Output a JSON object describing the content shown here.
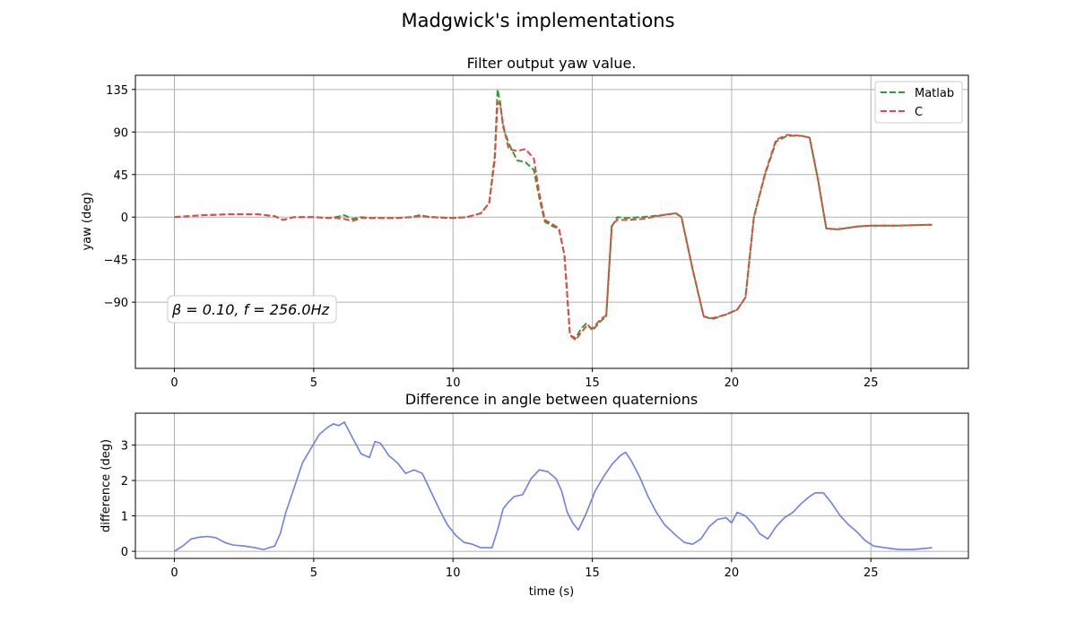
{
  "figure": {
    "suptitle": "Madgwick's implementations"
  },
  "chart_data": [
    {
      "type": "line",
      "title": "Filter output yaw value.",
      "xlabel": "",
      "ylabel": "yaw (deg)",
      "xlim": [
        -1.4,
        28.5
      ],
      "ylim": [
        -160,
        150
      ],
      "xticks": [
        0,
        5,
        10,
        15,
        20,
        25
      ],
      "yticks": [
        -90,
        -45,
        0,
        45,
        90,
        135
      ],
      "ytick_labels": [
        "−90",
        "−45",
        "0",
        "45",
        "90",
        "135"
      ],
      "grid": true,
      "legend": "top-right",
      "annotation": "β = 0.10,  f = 256.0Hz",
      "series": [
        {
          "name": "Matlab",
          "color": "#2ca02c",
          "style": "dashed",
          "x": [
            0,
            0.5,
            1,
            2,
            3,
            3.3,
            3.6,
            3.9,
            4.3,
            5,
            5.5,
            5.8,
            6.1,
            6.4,
            6.7,
            7,
            8,
            8.5,
            8.8,
            9.2,
            10,
            10.5,
            11,
            11.3,
            11.5,
            11.6,
            11.7,
            11.8,
            12,
            12.3,
            12.6,
            12.9,
            13.1,
            13.3,
            13.6,
            13.8,
            14,
            14.2,
            14.4,
            14.6,
            14.8,
            15,
            15.3,
            15.5,
            15.7,
            15.9,
            16.2,
            16.8,
            17.5,
            18,
            18.2,
            18.6,
            19,
            19.3,
            19.8,
            20.2,
            20.5,
            20.8,
            21.2,
            21.6,
            22,
            22.5,
            22.8,
            23.1,
            23.4,
            23.8,
            24.5,
            25,
            26,
            27.2
          ],
          "y": [
            0,
            1,
            2,
            3,
            3,
            2,
            1,
            -3,
            0,
            0,
            -1,
            0,
            2,
            -2,
            0,
            -1,
            -1,
            0,
            2,
            0,
            -1,
            0,
            4,
            15,
            65,
            135,
            120,
            95,
            78,
            60,
            58,
            50,
            20,
            -5,
            -10,
            -12,
            -40,
            -125,
            -128,
            -118,
            -112,
            -120,
            -110,
            -105,
            -10,
            0,
            -1,
            0,
            2,
            4,
            0,
            -55,
            -105,
            -108,
            -103,
            -98,
            -85,
            0,
            45,
            80,
            86,
            86,
            84,
            40,
            -12,
            -13,
            -10,
            -9,
            -9,
            -8
          ]
        },
        {
          "name": "C",
          "color": "#ee4444",
          "style": "dashed",
          "x": [
            0,
            0.5,
            1,
            2,
            3,
            3.3,
            3.6,
            3.9,
            4.3,
            5,
            5.5,
            5.8,
            6.1,
            6.4,
            6.7,
            7,
            8,
            8.5,
            8.8,
            9.2,
            10,
            10.5,
            11,
            11.3,
            11.5,
            11.6,
            11.7,
            11.8,
            12,
            12.3,
            12.6,
            12.9,
            13.1,
            13.3,
            13.6,
            13.8,
            14,
            14.2,
            14.4,
            14.6,
            14.8,
            15,
            15.3,
            15.5,
            15.7,
            15.9,
            16.2,
            16.8,
            17.5,
            18,
            18.2,
            18.6,
            19,
            19.3,
            19.8,
            20.2,
            20.5,
            20.8,
            21.2,
            21.6,
            22,
            22.5,
            22.8,
            23.1,
            23.4,
            23.8,
            24.5,
            25,
            26,
            27.2
          ],
          "y": [
            0,
            1,
            2,
            3,
            3,
            2,
            1,
            -3,
            0,
            0,
            -1,
            -1,
            -2,
            -4,
            -1,
            -1,
            -1,
            0,
            1,
            0,
            -1,
            0,
            4,
            15,
            60,
            122,
            118,
            98,
            72,
            70,
            72,
            62,
            25,
            -3,
            -8,
            -12,
            -40,
            -125,
            -130,
            -122,
            -115,
            -118,
            -108,
            -104,
            -8,
            -3,
            -3,
            -2,
            2,
            4,
            0,
            -55,
            -105,
            -107,
            -103,
            -98,
            -85,
            0,
            46,
            82,
            87,
            86,
            84,
            40,
            -12,
            -13,
            -10,
            -9,
            -9,
            -8
          ]
        }
      ]
    },
    {
      "type": "line",
      "title": "Difference in angle between quaternions",
      "xlabel": "time (s)",
      "ylabel": "difference (deg)",
      "xlim": [
        -1.4,
        28.5
      ],
      "ylim": [
        -0.2,
        3.9
      ],
      "xticks": [
        0,
        5,
        10,
        15,
        20,
        25
      ],
      "yticks": [
        0,
        1,
        2,
        3
      ],
      "grid": true,
      "series": [
        {
          "color": "#6b7ff0",
          "style": "solid",
          "x": [
            0,
            0.3,
            0.6,
            0.9,
            1.2,
            1.5,
            1.8,
            2.1,
            2.5,
            2.9,
            3.2,
            3.4,
            3.6,
            3.8,
            4.0,
            4.3,
            4.6,
            4.9,
            5.2,
            5.5,
            5.7,
            5.9,
            6.1,
            6.4,
            6.7,
            7.0,
            7.2,
            7.4,
            7.7,
            8.0,
            8.3,
            8.6,
            8.9,
            9.2,
            9.5,
            9.8,
            10.1,
            10.4,
            10.7,
            11.0,
            11.2,
            11.4,
            11.6,
            11.8,
            12.0,
            12.2,
            12.5,
            12.8,
            13.1,
            13.4,
            13.7,
            13.9,
            14.1,
            14.3,
            14.5,
            14.8,
            15.1,
            15.4,
            15.7,
            16.0,
            16.2,
            16.4,
            16.7,
            17.0,
            17.3,
            17.6,
            18.0,
            18.3,
            18.6,
            18.9,
            19.2,
            19.5,
            19.8,
            20.0,
            20.2,
            20.5,
            20.8,
            21.0,
            21.3,
            21.6,
            21.9,
            22.2,
            22.5,
            22.8,
            23.0,
            23.3,
            23.6,
            23.9,
            24.2,
            24.5,
            24.8,
            25.1,
            25.5,
            26.0,
            26.5,
            27.2
          ],
          "y": [
            0,
            0.15,
            0.35,
            0.4,
            0.42,
            0.38,
            0.25,
            0.18,
            0.15,
            0.1,
            0.05,
            0.1,
            0.15,
            0.5,
            1.1,
            1.8,
            2.5,
            2.9,
            3.3,
            3.5,
            3.6,
            3.55,
            3.65,
            3.2,
            2.75,
            2.65,
            3.1,
            3.05,
            2.7,
            2.5,
            2.2,
            2.3,
            2.2,
            1.7,
            1.2,
            0.75,
            0.45,
            0.25,
            0.2,
            0.1,
            0.1,
            0.1,
            0.6,
            1.2,
            1.4,
            1.55,
            1.6,
            2.05,
            2.3,
            2.25,
            2.05,
            1.7,
            1.1,
            0.8,
            0.6,
            1.1,
            1.7,
            2.1,
            2.45,
            2.7,
            2.8,
            2.55,
            2.1,
            1.55,
            1.1,
            0.75,
            0.45,
            0.25,
            0.2,
            0.35,
            0.7,
            0.9,
            0.95,
            0.8,
            1.1,
            1.0,
            0.75,
            0.5,
            0.35,
            0.7,
            0.95,
            1.1,
            1.35,
            1.55,
            1.65,
            1.65,
            1.35,
            1.0,
            0.75,
            0.55,
            0.3,
            0.15,
            0.1,
            0.05,
            0.05,
            0.1
          ]
        }
      ]
    }
  ]
}
